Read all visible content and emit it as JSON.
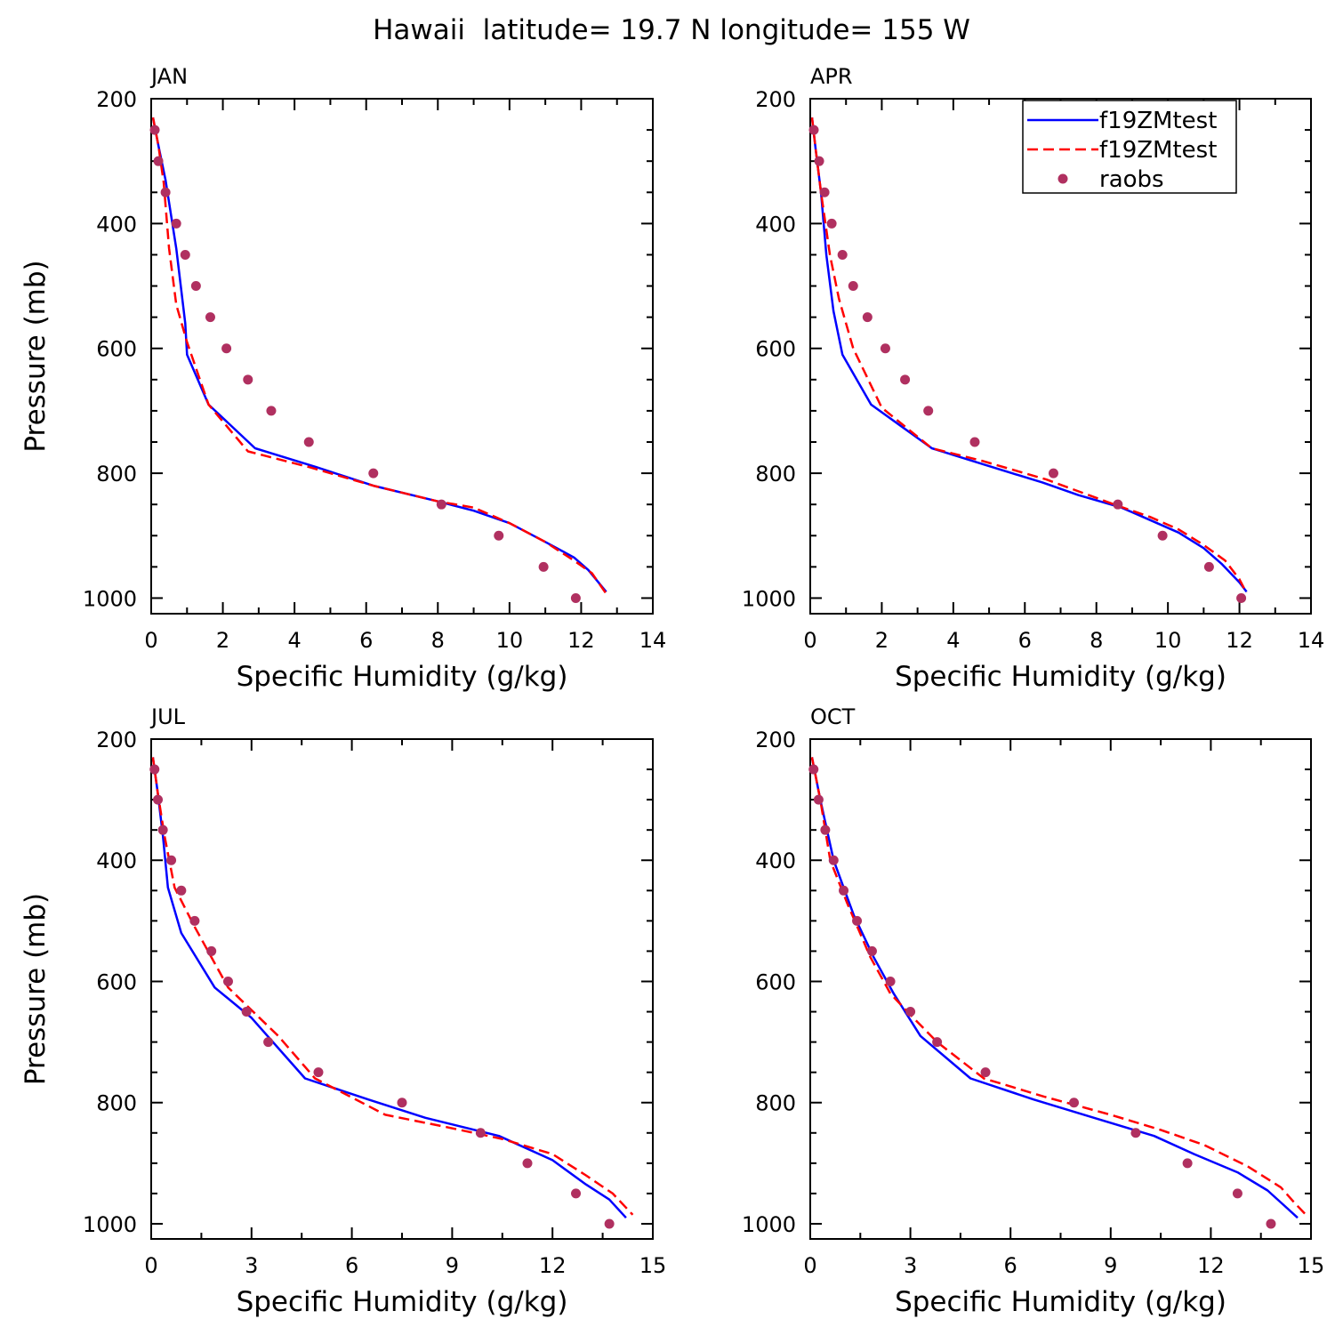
{
  "figure": {
    "title": "Hawaii  latitude= 19.7 N longitude= 155 W"
  },
  "chart_data": [
    {
      "type": "line",
      "panel": "JAN",
      "title": "JAN",
      "xlabel": "Specific Humidity (g/kg)",
      "ylabel": "Pressure (mb)",
      "xlim": [
        0,
        14
      ],
      "ylim": [
        200,
        1025
      ],
      "y_inverted": true,
      "xticks": [
        0,
        2,
        4,
        6,
        8,
        10,
        12,
        14
      ],
      "yticks": [
        200,
        400,
        600,
        800,
        1000
      ],
      "show_ylabel": true,
      "legend": null,
      "series": [
        {
          "name": "f19ZMtest",
          "style": "solid",
          "color": "#0000ff",
          "points": [
            [
              0.05,
              230
            ],
            [
              0.2,
              275
            ],
            [
              0.4,
              330
            ],
            [
              0.7,
              440
            ],
            [
              0.95,
              560
            ],
            [
              1.0,
              610
            ],
            [
              1.6,
              690
            ],
            [
              2.9,
              760
            ],
            [
              4.6,
              790
            ],
            [
              6.2,
              820
            ],
            [
              8.0,
              845
            ],
            [
              9.0,
              860
            ],
            [
              10.0,
              880
            ],
            [
              11.0,
              910
            ],
            [
              11.8,
              935
            ],
            [
              12.2,
              955
            ],
            [
              12.7,
              990
            ]
          ]
        },
        {
          "name": "f19ZMtest",
          "style": "dashed",
          "color": "#ff0000",
          "points": [
            [
              0.05,
              230
            ],
            [
              0.2,
              275
            ],
            [
              0.35,
              335
            ],
            [
              0.5,
              440
            ],
            [
              0.7,
              530
            ],
            [
              1.0,
              590
            ],
            [
              1.6,
              690
            ],
            [
              2.7,
              765
            ],
            [
              4.4,
              790
            ],
            [
              6.2,
              820
            ],
            [
              8.0,
              845
            ],
            [
              9.0,
              855
            ],
            [
              10.0,
              880
            ],
            [
              11.0,
              910
            ],
            [
              11.8,
              940
            ],
            [
              12.3,
              960
            ],
            [
              12.7,
              993
            ]
          ]
        },
        {
          "name": "raobs",
          "style": "dots",
          "color": "#b03060",
          "points": [
            [
              0.1,
              250
            ],
            [
              0.2,
              300
            ],
            [
              0.4,
              350
            ],
            [
              0.7,
              400
            ],
            [
              0.95,
              450
            ],
            [
              1.25,
              500
            ],
            [
              1.65,
              550
            ],
            [
              2.1,
              600
            ],
            [
              2.7,
              650
            ],
            [
              3.35,
              700
            ],
            [
              4.4,
              750
            ],
            [
              6.2,
              800
            ],
            [
              8.1,
              850
            ],
            [
              9.7,
              900
            ],
            [
              10.95,
              950
            ],
            [
              11.85,
              1000
            ]
          ]
        }
      ]
    },
    {
      "type": "line",
      "panel": "APR",
      "title": "APR",
      "xlabel": "Specific Humidity (g/kg)",
      "ylabel": "Pressure (mb)",
      "xlim": [
        0,
        14
      ],
      "ylim": [
        200,
        1025
      ],
      "y_inverted": true,
      "xticks": [
        0,
        2,
        4,
        6,
        8,
        10,
        12,
        14
      ],
      "yticks": [
        200,
        400,
        600,
        800,
        1000
      ],
      "show_ylabel": false,
      "legend": "top-right",
      "series": [
        {
          "name": "f19ZMtest",
          "style": "solid",
          "color": "#0000ff",
          "points": [
            [
              0.05,
              230
            ],
            [
              0.15,
              280
            ],
            [
              0.3,
              350
            ],
            [
              0.45,
              450
            ],
            [
              0.65,
              540
            ],
            [
              0.9,
              610
            ],
            [
              1.7,
              690
            ],
            [
              3.4,
              760
            ],
            [
              4.8,
              785
            ],
            [
              6.5,
              815
            ],
            [
              7.5,
              835
            ],
            [
              8.7,
              855
            ],
            [
              9.5,
              875
            ],
            [
              10.3,
              895
            ],
            [
              11.0,
              920
            ],
            [
              11.5,
              945
            ],
            [
              12.0,
              975
            ],
            [
              12.2,
              990
            ]
          ]
        },
        {
          "name": "f19ZMtest",
          "style": "dashed",
          "color": "#ff0000",
          "points": [
            [
              0.05,
              230
            ],
            [
              0.15,
              280
            ],
            [
              0.3,
              350
            ],
            [
              0.55,
              450
            ],
            [
              0.8,
              520
            ],
            [
              1.2,
              600
            ],
            [
              2.0,
              695
            ],
            [
              3.4,
              760
            ],
            [
              4.8,
              780
            ],
            [
              6.6,
              810
            ],
            [
              8.5,
              850
            ],
            [
              9.5,
              870
            ],
            [
              10.3,
              890
            ],
            [
              11.0,
              915
            ],
            [
              11.6,
              940
            ],
            [
              12.0,
              970
            ],
            [
              12.2,
              992
            ]
          ]
        },
        {
          "name": "raobs",
          "style": "dots",
          "color": "#b03060",
          "points": [
            [
              0.1,
              250
            ],
            [
              0.25,
              300
            ],
            [
              0.4,
              350
            ],
            [
              0.6,
              400
            ],
            [
              0.9,
              450
            ],
            [
              1.2,
              500
            ],
            [
              1.6,
              550
            ],
            [
              2.1,
              600
            ],
            [
              2.65,
              650
            ],
            [
              3.3,
              700
            ],
            [
              4.6,
              750
            ],
            [
              6.8,
              800
            ],
            [
              8.6,
              850
            ],
            [
              9.85,
              900
            ],
            [
              11.15,
              950
            ],
            [
              12.05,
              1000
            ]
          ]
        }
      ]
    },
    {
      "type": "line",
      "panel": "JUL",
      "title": "JUL",
      "xlabel": "Specific Humidity (g/kg)",
      "ylabel": "Pressure (mb)",
      "xlim": [
        0,
        15
      ],
      "ylim": [
        200,
        1025
      ],
      "y_inverted": true,
      "xticks": [
        0,
        3,
        6,
        9,
        12,
        15
      ],
      "yticks": [
        200,
        400,
        600,
        800,
        1000
      ],
      "show_ylabel": true,
      "legend": null,
      "series": [
        {
          "name": "f19ZMtest",
          "style": "solid",
          "color": "#0000ff",
          "points": [
            [
              0.05,
              230
            ],
            [
              0.2,
              290
            ],
            [
              0.35,
              360
            ],
            [
              0.5,
              445
            ],
            [
              0.9,
              520
            ],
            [
              1.9,
              610
            ],
            [
              3.0,
              660
            ],
            [
              4.6,
              760
            ],
            [
              6.5,
              795
            ],
            [
              8.2,
              825
            ],
            [
              10.4,
              855
            ],
            [
              12.0,
              895
            ],
            [
              13.0,
              935
            ],
            [
              13.7,
              960
            ],
            [
              14.2,
              990
            ]
          ]
        },
        {
          "name": "f19ZMtest",
          "style": "dashed",
          "color": "#ff0000",
          "points": [
            [
              0.05,
              230
            ],
            [
              0.2,
              290
            ],
            [
              0.4,
              360
            ],
            [
              0.7,
              445
            ],
            [
              1.3,
              510
            ],
            [
              2.3,
              610
            ],
            [
              3.8,
              690
            ],
            [
              4.9,
              760
            ],
            [
              7.0,
              820
            ],
            [
              8.8,
              840
            ],
            [
              10.5,
              860
            ],
            [
              12.0,
              885
            ],
            [
              13.0,
              920
            ],
            [
              13.8,
              950
            ],
            [
              14.4,
              985
            ]
          ]
        },
        {
          "name": "raobs",
          "style": "dots",
          "color": "#b03060",
          "points": [
            [
              0.1,
              250
            ],
            [
              0.2,
              300
            ],
            [
              0.35,
              350
            ],
            [
              0.6,
              400
            ],
            [
              0.9,
              450
            ],
            [
              1.3,
              500
            ],
            [
              1.8,
              550
            ],
            [
              2.3,
              600
            ],
            [
              2.85,
              650
            ],
            [
              3.5,
              700
            ],
            [
              5.0,
              750
            ],
            [
              7.5,
              800
            ],
            [
              9.85,
              850
            ],
            [
              11.25,
              900
            ],
            [
              12.7,
              950
            ],
            [
              13.7,
              1000
            ]
          ]
        }
      ]
    },
    {
      "type": "line",
      "panel": "OCT",
      "title": "OCT",
      "xlabel": "Specific Humidity (g/kg)",
      "ylabel": "Pressure (mb)",
      "xlim": [
        0,
        15
      ],
      "ylim": [
        200,
        1025
      ],
      "y_inverted": true,
      "xticks": [
        0,
        3,
        6,
        9,
        12,
        15
      ],
      "yticks": [
        200,
        400,
        600,
        800,
        1000
      ],
      "show_ylabel": false,
      "legend": null,
      "series": [
        {
          "name": "f19ZMtest",
          "style": "solid",
          "color": "#0000ff",
          "points": [
            [
              0.05,
              230
            ],
            [
              0.3,
              300
            ],
            [
              0.7,
              400
            ],
            [
              1.3,
              490
            ],
            [
              1.9,
              560
            ],
            [
              2.5,
              620
            ],
            [
              3.3,
              690
            ],
            [
              4.8,
              760
            ],
            [
              6.7,
              795
            ],
            [
              8.5,
              825
            ],
            [
              10.3,
              855
            ],
            [
              11.5,
              885
            ],
            [
              12.8,
              915
            ],
            [
              13.7,
              945
            ],
            [
              14.2,
              970
            ],
            [
              14.6,
              990
            ]
          ]
        },
        {
          "name": "f19ZMtest",
          "style": "dashed",
          "color": "#ff0000",
          "points": [
            [
              0.05,
              230
            ],
            [
              0.3,
              300
            ],
            [
              0.6,
              400
            ],
            [
              1.1,
              470
            ],
            [
              1.8,
              560
            ],
            [
              2.4,
              620
            ],
            [
              3.0,
              655
            ],
            [
              3.8,
              700
            ],
            [
              5.2,
              760
            ],
            [
              7.0,
              790
            ],
            [
              9.0,
              820
            ],
            [
              10.5,
              845
            ],
            [
              11.8,
              870
            ],
            [
              13.1,
              905
            ],
            [
              14.1,
              940
            ],
            [
              14.5,
              965
            ],
            [
              14.9,
              988
            ]
          ]
        },
        {
          "name": "raobs",
          "style": "dots",
          "color": "#b03060",
          "points": [
            [
              0.1,
              250
            ],
            [
              0.25,
              300
            ],
            [
              0.45,
              350
            ],
            [
              0.7,
              400
            ],
            [
              1.0,
              450
            ],
            [
              1.4,
              500
            ],
            [
              1.85,
              550
            ],
            [
              2.4,
              600
            ],
            [
              3.0,
              650
            ],
            [
              3.8,
              700
            ],
            [
              5.25,
              750
            ],
            [
              7.9,
              800
            ],
            [
              9.75,
              850
            ],
            [
              11.3,
              900
            ],
            [
              12.8,
              950
            ],
            [
              13.8,
              1000
            ]
          ]
        }
      ]
    }
  ]
}
